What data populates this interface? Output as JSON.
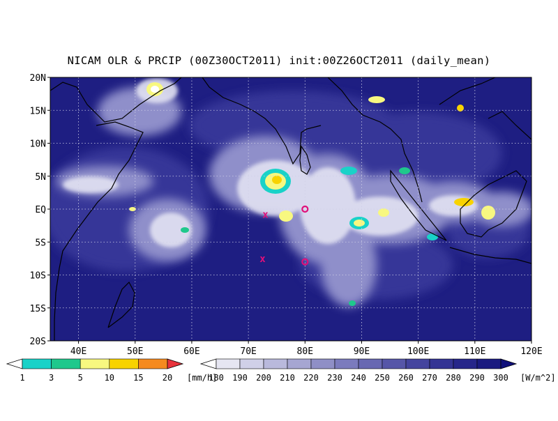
{
  "title": "NICAM OLR & PRCIP (00Z30OCT2011) init:00Z26OCT2011 (daily_mean)",
  "axes": {
    "lat_labels": [
      "20N",
      "15N",
      "10N",
      "5N",
      "EQ",
      "5S",
      "10S",
      "15S",
      "20S"
    ],
    "lon_labels": [
      "40E",
      "50E",
      "60E",
      "70E",
      "80E",
      "90E",
      "100E",
      "110E",
      "120E"
    ],
    "lat_values": [
      20,
      15,
      10,
      5,
      0,
      -5,
      -10,
      -15,
      -20
    ],
    "lon_values": [
      40,
      50,
      60,
      70,
      80,
      90,
      100,
      110,
      120
    ],
    "lon_range": [
      35,
      120
    ],
    "lat_range": [
      -20,
      20
    ],
    "grid": "dotted"
  },
  "markers": [
    {
      "type": "cross",
      "symbol": "x",
      "lon": 73,
      "lat": -0.8,
      "color": "#e0107a"
    },
    {
      "type": "cross",
      "symbol": "x",
      "lon": 72.5,
      "lat": -7.5,
      "color": "#e0107a"
    },
    {
      "type": "circle",
      "symbol": "o",
      "lon": 80,
      "lat": 0,
      "color": "#e0107a"
    },
    {
      "type": "circle",
      "symbol": "o",
      "lon": 80,
      "lat": -8,
      "color": "#e0107a"
    }
  ],
  "precip_legend": {
    "unit": "[mm/h]",
    "labels": [
      "1",
      "3",
      "5",
      "10",
      "15",
      "20"
    ],
    "colors": [
      "#ffffff",
      "#19d2c8",
      "#1fc88c",
      "#f8f880",
      "#f8d300",
      "#f58a1e",
      "#e8333c"
    ]
  },
  "olr_legend": {
    "unit": "[W/m^2]",
    "labels": [
      "180",
      "190",
      "200",
      "210",
      "220",
      "230",
      "240",
      "250",
      "260",
      "270",
      "280",
      "290",
      "300"
    ],
    "colors": [
      "#ffffff",
      "#e6e6f2",
      "#d0d0e8",
      "#b9b9dc",
      "#a6a6d2",
      "#8f8fc6",
      "#7b7bbd",
      "#6868b2",
      "#5656a8",
      "#44449e",
      "#343494",
      "#26268a",
      "#1b1b80",
      "#10107a"
    ]
  }
}
